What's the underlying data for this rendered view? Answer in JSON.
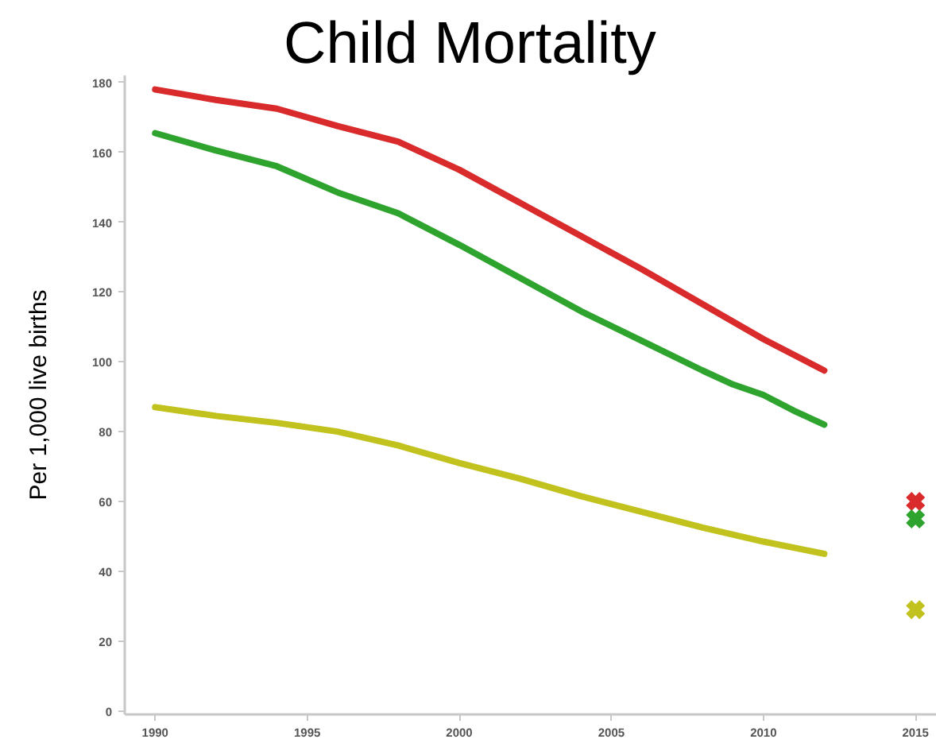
{
  "chart_data": {
    "type": "line",
    "title": "Child Mortality",
    "ylabel": "Per 1,000 live births",
    "xlim": [
      1989,
      2015.7
    ],
    "ylim": [
      -1,
      182
    ],
    "xticks": [
      1990,
      1995,
      2000,
      2005,
      2010,
      2015
    ],
    "yticks": [
      0,
      20,
      40,
      60,
      80,
      100,
      120,
      140,
      160,
      180
    ],
    "grid": false,
    "series": [
      {
        "color": "#d92b2b",
        "x": [
          1990,
          1992,
          1994,
          1996,
          1998,
          2000,
          2002,
          2004,
          2006,
          2008,
          2010,
          2012
        ],
        "values": [
          178,
          175,
          172.5,
          167.5,
          163,
          155,
          145.5,
          136,
          126.5,
          116.5,
          106.5,
          97.5
        ]
      },
      {
        "color": "#2ea32e",
        "x": [
          1990,
          1992,
          1994,
          1996,
          1998,
          2000,
          2002,
          2004,
          2006,
          2008,
          2009,
          2010,
          2011,
          2012
        ],
        "values": [
          165.5,
          160.5,
          156,
          148.5,
          142.5,
          133.5,
          124,
          114.5,
          106,
          97.5,
          93.5,
          90.5,
          86,
          82
        ]
      },
      {
        "color": "#c2c21e",
        "x": [
          1990,
          1992,
          1994,
          1996,
          1998,
          2000,
          2002,
          2004,
          2006,
          2008,
          2010,
          2012
        ],
        "values": [
          87,
          84.5,
          82.5,
          80,
          76,
          71,
          66.5,
          61.5,
          57,
          52.5,
          48.5,
          45
        ]
      },
      {
        "type": "scatter",
        "marker": "cross",
        "x": [
          2015,
          2015,
          2015
        ],
        "values": [
          60,
          55,
          29
        ],
        "colors": [
          "#d92b2b",
          "#2ea32e",
          "#c2c21e"
        ]
      }
    ]
  }
}
